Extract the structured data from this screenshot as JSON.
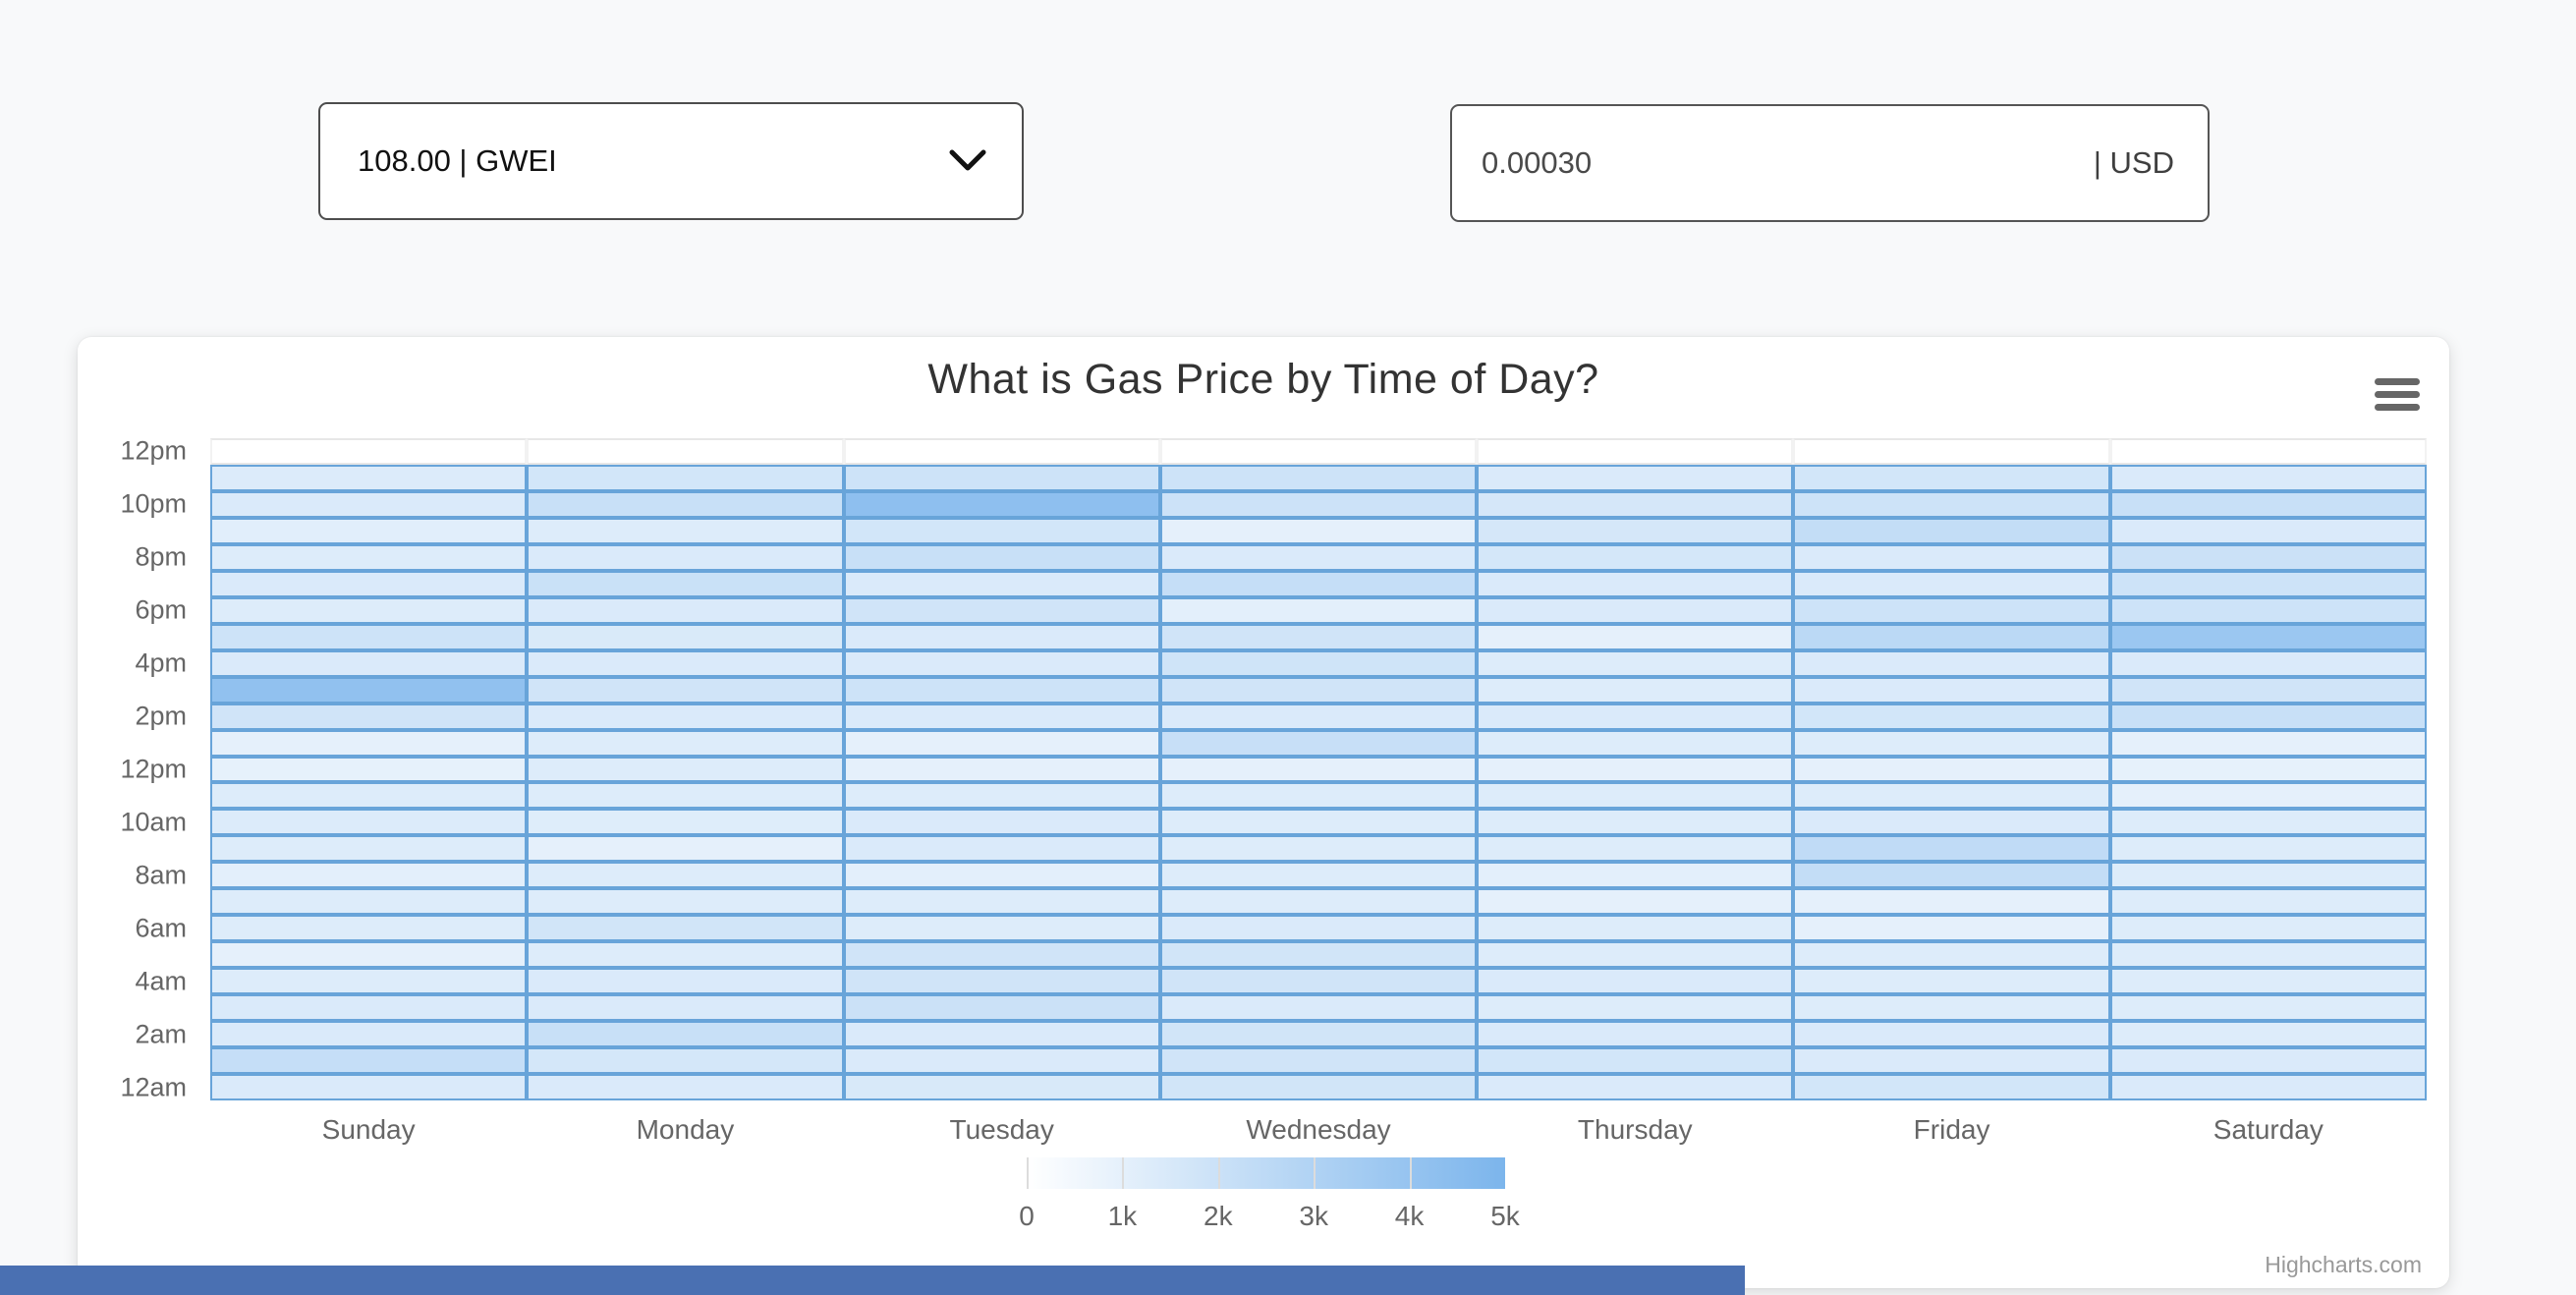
{
  "controls": {
    "gwei_select": {
      "value": "108.00 | GWEI"
    },
    "usd_input": {
      "value": "0.00030",
      "unit_suffix": "| USD"
    }
  },
  "chart": {
    "title": "What is Gas Price by Time of Day?",
    "credits_label": "Highcharts.com"
  },
  "chart_data": {
    "type": "heatmap",
    "title": "What is Gas Price by Time of Day?",
    "x_categories": [
      "Sunday",
      "Monday",
      "Tuesday",
      "Wednesday",
      "Thursday",
      "Friday",
      "Saturday"
    ],
    "y_tick_labels_top_to_bottom": [
      "12pm",
      "10pm",
      "8pm",
      "6pm",
      "4pm",
      "2pm",
      "12pm",
      "10am",
      "8am",
      "6am",
      "4am",
      "2am",
      "12am"
    ],
    "y_axis_note": "24 hourly rows per day; bottom row = 12am, top data row = 11pm; an extra top row is empty (white, no data)",
    "hours_index_order": "values[0] = 12am ... values[23] = 11pm",
    "values_unit": "gas price level, estimated from cell shading against the 0-5k legend",
    "color_axis": {
      "min": 0,
      "max": 5000,
      "min_color": "#ffffff",
      "max_color": "#7cb5ec",
      "legend_tick_labels": [
        "0",
        "1k",
        "2k",
        "3k",
        "4k",
        "5k"
      ],
      "legend_position": "bottom-center"
    },
    "series": [
      {
        "name": "Sunday",
        "values": [
          1400,
          2200,
          1400,
          1400,
          1300,
          1000,
          1300,
          1300,
          1050,
          1300,
          1350,
          1300,
          950,
          1000,
          1800,
          4200,
          1400,
          1900,
          1300,
          1400,
          1300,
          1150,
          1400,
          1350
        ]
      },
      {
        "name": "Monday",
        "values": [
          1400,
          1650,
          2100,
          1400,
          1400,
          1300,
          1750,
          1300,
          1300,
          1000,
          1250,
          1300,
          1300,
          1300,
          1400,
          1800,
          1400,
          1450,
          1400,
          2050,
          1400,
          1300,
          2100,
          1700
        ]
      },
      {
        "name": "Tuesday",
        "values": [
          1500,
          1400,
          1400,
          2000,
          1800,
          1800,
          1300,
          1300,
          1050,
          1400,
          1400,
          1300,
          1000,
          1000,
          1400,
          1900,
          1400,
          1400,
          1800,
          1400,
          2100,
          1700,
          4300,
          1900
        ]
      },
      {
        "name": "Wednesday",
        "values": [
          1750,
          1800,
          1750,
          1400,
          1800,
          1750,
          1400,
          1300,
          1300,
          1300,
          1300,
          1300,
          1000,
          2150,
          1400,
          1800,
          1850,
          1800,
          1050,
          2200,
          1400,
          1000,
          1950,
          1900
        ]
      },
      {
        "name": "Thursday",
        "values": [
          1400,
          1700,
          1400,
          1300,
          1400,
          1300,
          1300,
          1000,
          1050,
          1300,
          1300,
          1300,
          1000,
          1300,
          1400,
          1300,
          1300,
          1000,
          1400,
          1400,
          1650,
          1600,
          1600,
          1400
        ]
      },
      {
        "name": "Friday",
        "values": [
          1700,
          1400,
          1400,
          1300,
          1300,
          1300,
          1000,
          1000,
          2300,
          2400,
          1400,
          1300,
          1000,
          1300,
          1700,
          1400,
          1400,
          2600,
          1900,
          1400,
          1400,
          2300,
          1900,
          1700
        ]
      },
      {
        "name": "Saturday",
        "values": [
          1400,
          1400,
          1300,
          1300,
          1300,
          1300,
          1300,
          1300,
          1300,
          1300,
          1300,
          1000,
          950,
          1000,
          2100,
          1800,
          1400,
          3800,
          1900,
          1900,
          2000,
          1400,
          2100,
          1400
        ]
      }
    ]
  },
  "colors": {
    "accent_blue": "#7cb5ec",
    "cell_border": "#68a4d9",
    "bottom_bar": "#4a70b2",
    "axis_label": "#666666",
    "title": "#333333"
  }
}
